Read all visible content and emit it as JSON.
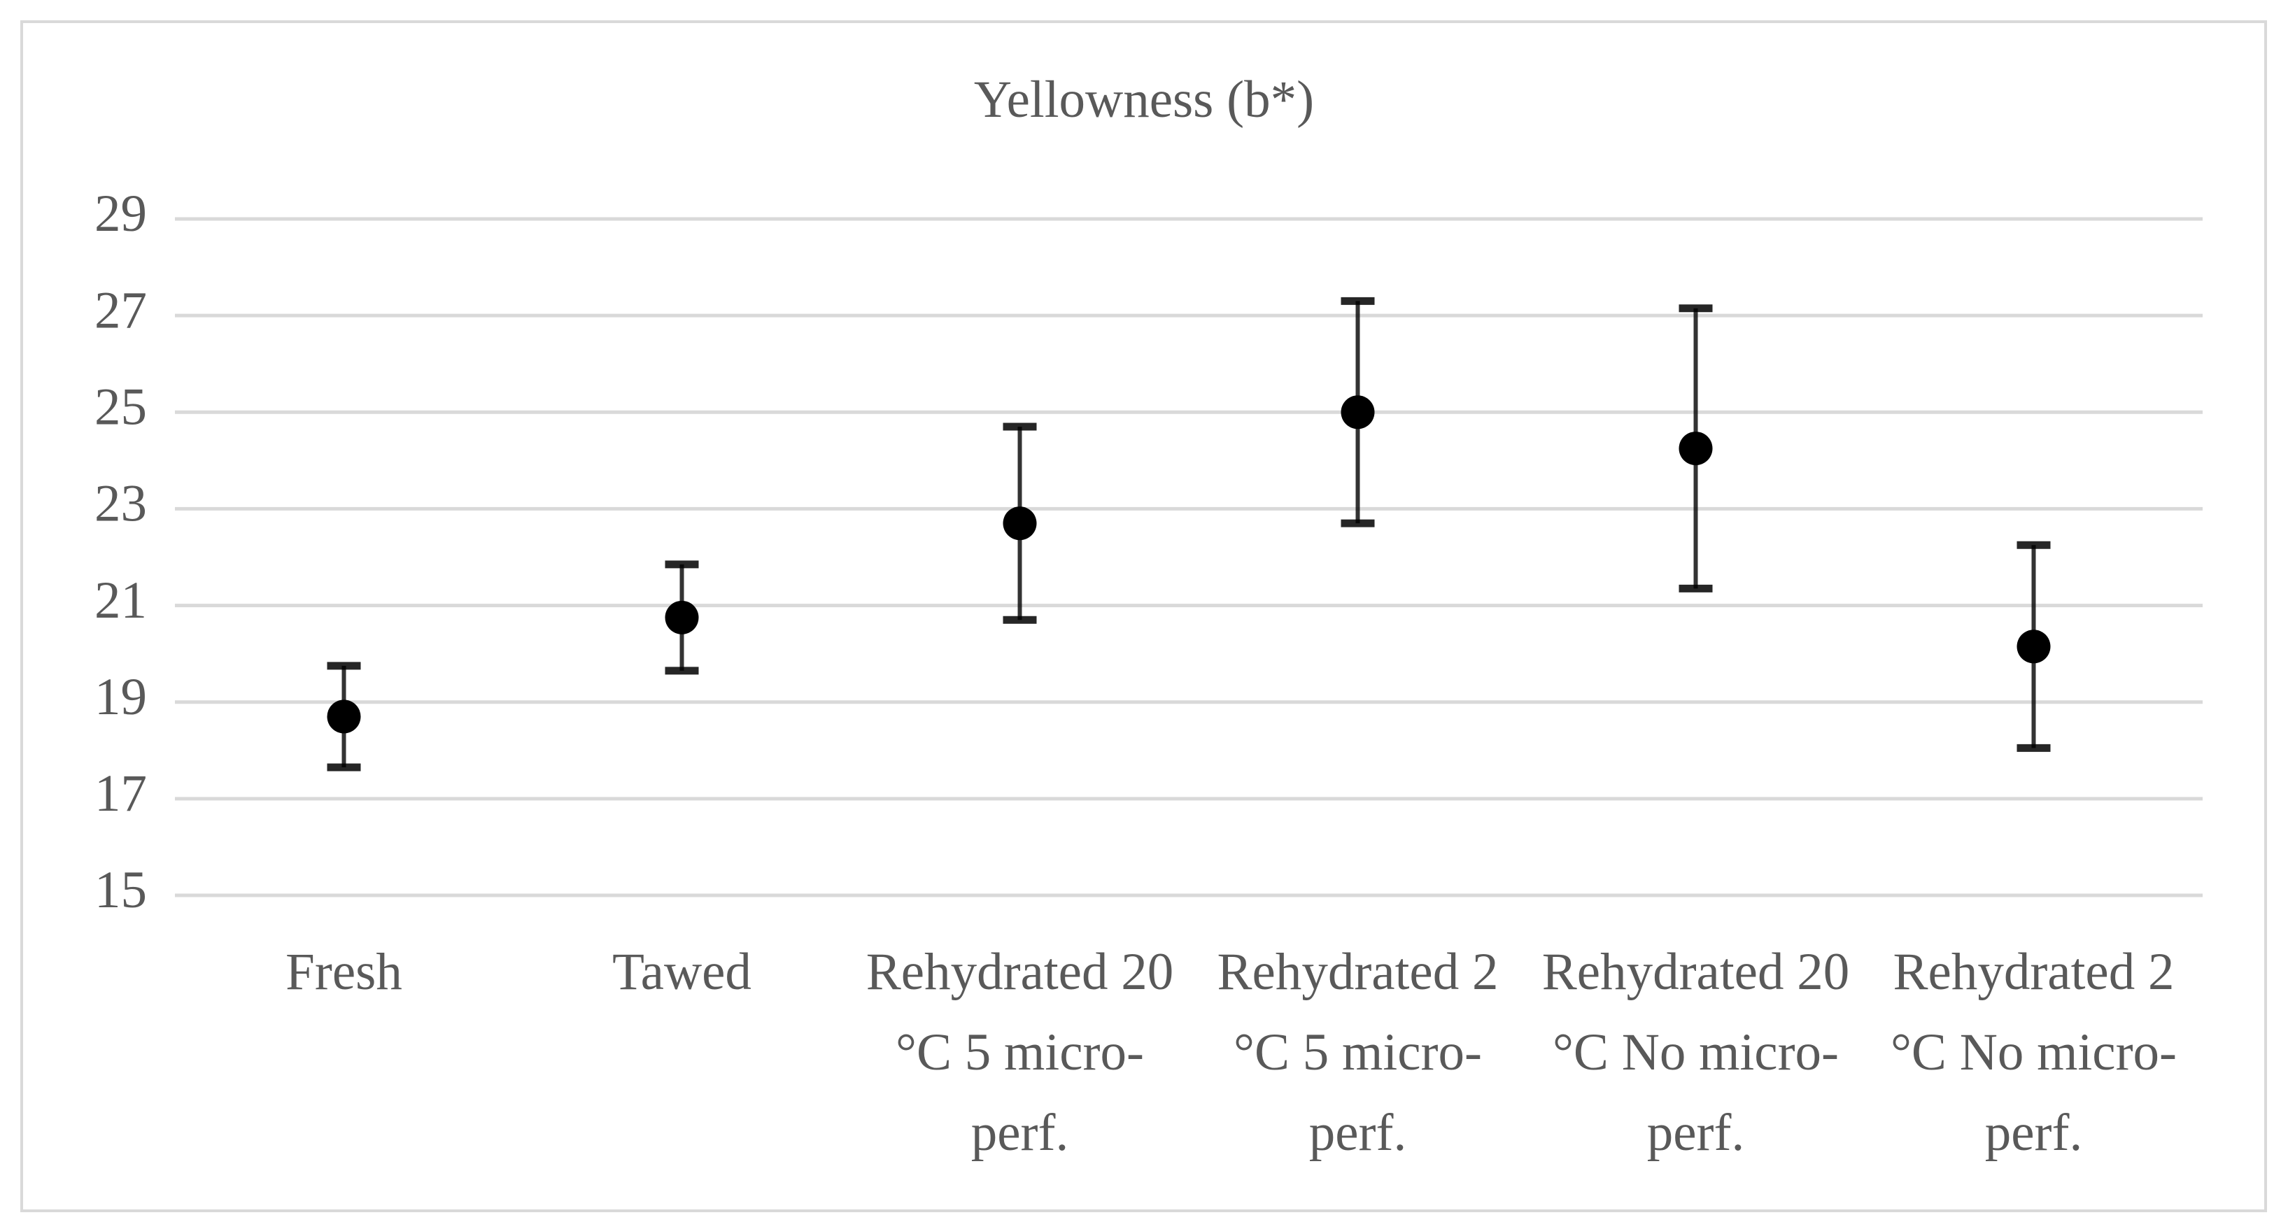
{
  "chart_data": {
    "type": "errorbar",
    "title": "Yellowness (b*)",
    "categories": [
      "Fresh",
      "Tawed",
      "Rehydrated 20 °C 5 micro-perf.",
      "Rehydrated 2 °C 5 micro-perf.",
      "Rehydrated 20 °C No micro-perf.",
      "Rehydrated 2 °C No micro-perf."
    ],
    "values": [
      18.7,
      20.75,
      22.7,
      25.0,
      24.25,
      20.15
    ],
    "errors": [
      1.05,
      1.1,
      2.0,
      2.3,
      2.9,
      2.1
    ],
    "color": "#000000",
    "ylim": [
      15,
      29
    ],
    "yticks": [
      15,
      17,
      19,
      21,
      23,
      25,
      27,
      29
    ],
    "grid": true
  }
}
